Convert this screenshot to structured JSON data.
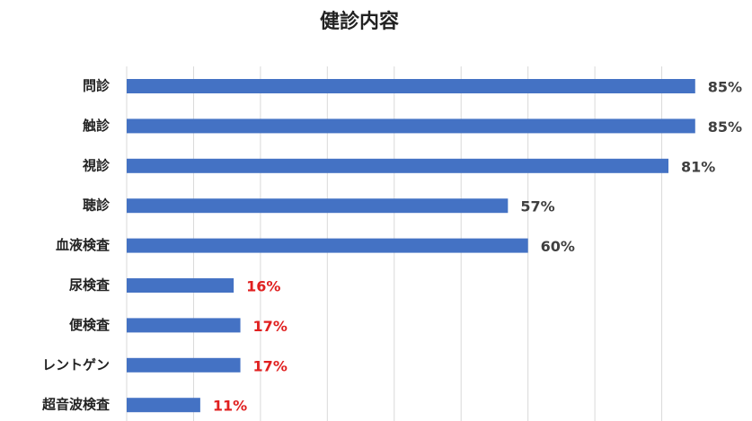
{
  "chart_data": {
    "type": "hbar",
    "title": "健診内容",
    "categories": [
      "問診",
      "触診",
      "視診",
      "聴診",
      "血液検査",
      "尿検査",
      "便検査",
      "レントゲン",
      "超音波検査"
    ],
    "values": [
      85,
      85,
      81,
      57,
      60,
      16,
      17,
      17,
      11
    ],
    "value_labels": [
      "85%",
      "85%",
      "81%",
      "57%",
      "60%",
      "16%",
      "17%",
      "17%",
      "11%"
    ],
    "label_colors": [
      "#404040",
      "#404040",
      "#404040",
      "#404040",
      "#404040",
      "#e02020",
      "#e02020",
      "#e02020",
      "#e02020"
    ],
    "color": "#4472c4",
    "xlim": [
      0,
      90
    ],
    "xticks": [
      0,
      10,
      20,
      30,
      40,
      50,
      60,
      70,
      80
    ],
    "grid": true
  }
}
